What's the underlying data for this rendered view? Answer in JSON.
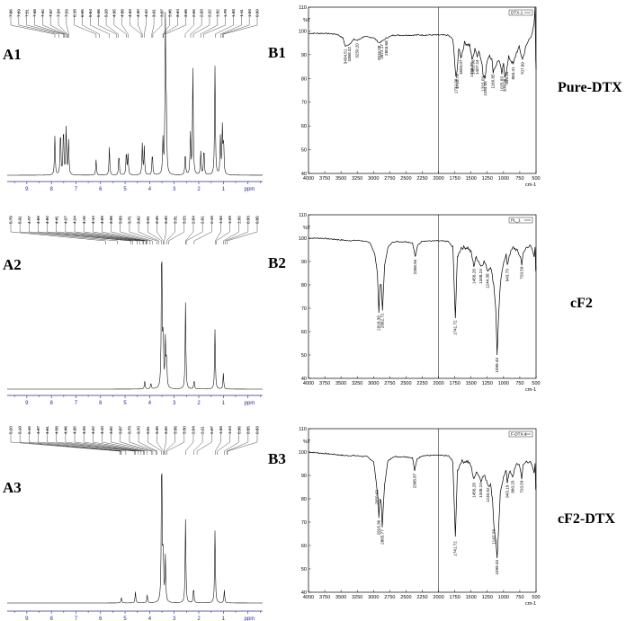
{
  "panels": {
    "A1": "A1",
    "A2": "A2",
    "A3": "A3",
    "B1": "B1",
    "B2": "B2",
    "B3": "B3"
  },
  "samples": {
    "B1": "Pure-DTX",
    "B2": "cF2",
    "B3": "cF2-DTX"
  },
  "colors": {
    "nmr_axis": "#2a2a9a",
    "spectrum": "#000000"
  },
  "chart_data": [
    {
      "type": "line",
      "id": "A1",
      "kind": "1H NMR spectrum",
      "xlabel": "ppm",
      "xlim": [
        9.8,
        -0.6
      ],
      "x_reversed": true,
      "x_ticks": [
        "9",
        "8",
        "7",
        "6",
        "5",
        "4",
        "3",
        "2",
        "1",
        "ppm"
      ],
      "shift_labels": [
        "7.86",
        "7.69",
        "7.51",
        "7.48",
        "7.42",
        "7.37",
        "7.34",
        "7.29",
        "6.18",
        "6.05",
        "5.64",
        "5.36",
        "5.28",
        "4.95",
        "4.88",
        "4.34",
        "4.30",
        "4.22",
        "3.91",
        "3.87",
        "3.46",
        "3.44",
        "3.36",
        "2.55",
        "2.33",
        "2.22",
        "1.92",
        "1.79",
        "1.33",
        "1.11",
        "1.04",
        "0.99"
      ],
      "peaks": [
        [
          7.86,
          0.25
        ],
        [
          7.63,
          0.3
        ],
        [
          7.51,
          0.32
        ],
        [
          7.4,
          0.3
        ],
        [
          7.3,
          0.22
        ],
        [
          6.18,
          0.1
        ],
        [
          5.64,
          0.18
        ],
        [
          5.25,
          0.14
        ],
        [
          4.95,
          0.16
        ],
        [
          4.88,
          0.13
        ],
        [
          4.3,
          0.2
        ],
        [
          4.22,
          0.18
        ],
        [
          3.89,
          0.15
        ],
        [
          3.46,
          0.22
        ],
        [
          3.36,
          1.0
        ],
        [
          3.32,
          0.35
        ],
        [
          2.55,
          0.15
        ],
        [
          2.34,
          0.26
        ],
        [
          2.24,
          0.68
        ],
        [
          1.92,
          0.15
        ],
        [
          1.79,
          0.18
        ],
        [
          1.34,
          0.7
        ],
        [
          1.12,
          0.24
        ],
        [
          1.04,
          0.3
        ],
        [
          0.99,
          0.22
        ]
      ]
    },
    {
      "type": "line",
      "id": "A2",
      "kind": "1H NMR spectrum",
      "xlabel": "ppm",
      "xlim": [
        9.8,
        -0.6
      ],
      "x_reversed": true,
      "x_ticks": [
        "9",
        "8",
        "7",
        "6",
        "5",
        "4",
        "3",
        "2",
        "1",
        "ppm"
      ],
      "shift_labels": [
        "5.79",
        "5.31",
        "4.77",
        "4.69",
        "4.50",
        "4.41",
        "4.27",
        "4.24",
        "4.15",
        "4.14",
        "4.09",
        "3.98",
        "3.89",
        "3.71",
        "3.62",
        "3.51",
        "3.45",
        "3.40",
        "3.31",
        "3.23",
        "2.54",
        "2.51",
        "2.19",
        "1.33",
        "1.29",
        "1.00",
        "0.93",
        "0.85"
      ],
      "peaks": [
        [
          4.2,
          0.05
        ],
        [
          3.95,
          0.04
        ],
        [
          3.51,
          1.0
        ],
        [
          3.45,
          0.35
        ],
        [
          3.36,
          0.3
        ],
        [
          3.31,
          0.2
        ],
        [
          2.54,
          0.55
        ],
        [
          2.19,
          0.06
        ],
        [
          1.34,
          0.38
        ],
        [
          1.0,
          0.1
        ]
      ]
    },
    {
      "type": "line",
      "id": "A3",
      "kind": "1H NMR spectrum",
      "xlabel": "ppm",
      "xlim": [
        9.8,
        -0.6
      ],
      "x_reversed": true,
      "x_ticks": [
        "9",
        "8",
        "7",
        "6",
        "5",
        "4",
        "3",
        "2",
        "1",
        "ppm"
      ],
      "shift_labels": [
        "5.20",
        "5.19",
        "5.15",
        "4.97",
        "4.61",
        "4.58",
        "4.46",
        "4.35",
        "4.25",
        "4.22",
        "4.10",
        "3.92",
        "3.87",
        "3.73",
        "3.70",
        "3.51",
        "3.45",
        "3.42",
        "3.36",
        "3.30",
        "2.54",
        "2.21",
        "2.07",
        "1.33",
        "1.24",
        "0.96",
        "0.85",
        "0.83"
      ],
      "peaks": [
        [
          5.15,
          0.04
        ],
        [
          4.58,
          0.07
        ],
        [
          4.1,
          0.05
        ],
        [
          3.51,
          1.0
        ],
        [
          3.45,
          0.32
        ],
        [
          3.36,
          0.28
        ],
        [
          2.54,
          0.52
        ],
        [
          2.21,
          0.1
        ],
        [
          1.34,
          0.45
        ],
        [
          0.96,
          0.08
        ]
      ]
    },
    {
      "type": "line",
      "id": "B1",
      "kind": "FTIR spectrum",
      "legend": "DTX-1",
      "ylabel": "%T",
      "xlabel": "cm-1",
      "xlim": [
        4000,
        500
      ],
      "ylim": [
        40,
        110
      ],
      "x_ticks": [
        4000,
        3750,
        3500,
        3250,
        3000,
        2750,
        2500,
        2250,
        2000,
        1750,
        1500,
        1250,
        1000,
        750,
        500
      ],
      "y_ticks": [
        40,
        50,
        60,
        70,
        80,
        90,
        100,
        110
      ],
      "peak_labels": [
        "3434.51",
        "3368.32",
        "3250.20",
        "2915.08",
        "2872.17",
        "2803.68",
        "1732.99",
        "1712.78",
        "1653.07",
        "1486.00",
        "1465.98",
        "1407.24",
        "1315.03",
        "1284.05",
        "1160.85",
        "1025.83",
        "979.98",
        "948.40",
        "850.41",
        "707.89"
      ],
      "points": [
        [
          4000,
          99
        ],
        [
          3750,
          99
        ],
        [
          3560,
          98.6
        ],
        [
          3470,
          97
        ],
        [
          3434,
          93.5
        ],
        [
          3368,
          94.5
        ],
        [
          3300,
          96.5
        ],
        [
          3250,
          96
        ],
        [
          3150,
          97.6
        ],
        [
          3000,
          97.2
        ],
        [
          2960,
          96.2
        ],
        [
          2915,
          95
        ],
        [
          2872,
          95.6
        ],
        [
          2803,
          97
        ],
        [
          2700,
          98.2
        ],
        [
          2500,
          98.2
        ],
        [
          2300,
          98.3
        ],
        [
          2100,
          98.3
        ],
        [
          1850,
          98.2
        ],
        [
          1780,
          96.5
        ],
        [
          1733,
          81
        ],
        [
          1712,
          83
        ],
        [
          1690,
          93
        ],
        [
          1653,
          89
        ],
        [
          1600,
          95
        ],
        [
          1520,
          94
        ],
        [
          1486,
          88
        ],
        [
          1466,
          89
        ],
        [
          1440,
          93
        ],
        [
          1407,
          89
        ],
        [
          1380,
          92
        ],
        [
          1330,
          86
        ],
        [
          1315,
          82
        ],
        [
          1284,
          80
        ],
        [
          1250,
          88
        ],
        [
          1215,
          90
        ],
        [
          1180,
          88
        ],
        [
          1161,
          83
        ],
        [
          1110,
          86
        ],
        [
          1070,
          88
        ],
        [
          1026,
          82
        ],
        [
          1000,
          86
        ],
        [
          980,
          81
        ],
        [
          948,
          84
        ],
        [
          920,
          89
        ],
        [
          850,
          86
        ],
        [
          800,
          91
        ],
        [
          760,
          93
        ],
        [
          708,
          88
        ],
        [
          660,
          93
        ],
        [
          600,
          97
        ],
        [
          560,
          99
        ],
        [
          530,
          103
        ],
        [
          515,
          110
        ],
        [
          505,
          88
        ],
        [
          500,
          84
        ]
      ]
    },
    {
      "type": "line",
      "id": "B2",
      "kind": "FTIR spectrum",
      "legend": "PL_1",
      "ylabel": "%T",
      "xlabel": "cm-1",
      "xlim": [
        4000,
        500
      ],
      "ylim": [
        40,
        110
      ],
      "x_ticks": [
        4000,
        3750,
        3500,
        3250,
        3000,
        2750,
        2500,
        2250,
        2000,
        1750,
        1500,
        1250,
        1000,
        750,
        500
      ],
      "y_ticks": [
        40,
        50,
        60,
        70,
        80,
        90,
        100,
        110
      ],
      "peak_labels": [
        "2918.38",
        "2862.72",
        "2358.94",
        "1741.72",
        "1456.28",
        "1348.24",
        "1244.38",
        "1099.43",
        "943.73",
        "720.59"
      ],
      "points": [
        [
          4000,
          100
        ],
        [
          3800,
          100
        ],
        [
          3600,
          99.5
        ],
        [
          3400,
          99
        ],
        [
          3200,
          99
        ],
        [
          3050,
          98
        ],
        [
          2980,
          93
        ],
        [
          2940,
          85
        ],
        [
          2918,
          68
        ],
        [
          2900,
          80
        ],
        [
          2880,
          80
        ],
        [
          2862,
          69
        ],
        [
          2830,
          88
        ],
        [
          2780,
          96
        ],
        [
          2700,
          98.5
        ],
        [
          2500,
          98.5
        ],
        [
          2400,
          98
        ],
        [
          2358,
          92
        ],
        [
          2320,
          97
        ],
        [
          2250,
          98.8
        ],
        [
          2000,
          98.8
        ],
        [
          1850,
          98.6
        ],
        [
          1780,
          96
        ],
        [
          1741,
          66
        ],
        [
          1710,
          92
        ],
        [
          1650,
          96
        ],
        [
          1550,
          96
        ],
        [
          1500,
          94
        ],
        [
          1470,
          90
        ],
        [
          1456,
          88
        ],
        [
          1420,
          92
        ],
        [
          1380,
          90
        ],
        [
          1348,
          88
        ],
        [
          1300,
          90
        ],
        [
          1280,
          89
        ],
        [
          1244,
          86
        ],
        [
          1200,
          88
        ],
        [
          1150,
          80
        ],
        [
          1120,
          70
        ],
        [
          1099,
          50
        ],
        [
          1080,
          64
        ],
        [
          1050,
          80
        ],
        [
          1000,
          90
        ],
        [
          960,
          93
        ],
        [
          943,
          88
        ],
        [
          910,
          93
        ],
        [
          850,
          96
        ],
        [
          800,
          95
        ],
        [
          740,
          92
        ],
        [
          720,
          89
        ],
        [
          700,
          93
        ],
        [
          650,
          96
        ],
        [
          600,
          97
        ],
        [
          560,
          95
        ],
        [
          530,
          92
        ],
        [
          515,
          96
        ],
        [
          505,
          86
        ],
        [
          500,
          88
        ]
      ]
    },
    {
      "type": "line",
      "id": "B3",
      "kind": "FTIR spectrum",
      "legend": "F-DTX-1",
      "ylabel": "%T",
      "xlabel": "cm-1",
      "xlim": [
        4000,
        500
      ],
      "ylim": [
        40,
        110
      ],
      "x_ticks": [
        4000,
        3750,
        3500,
        3250,
        3000,
        2750,
        2500,
        2250,
        2000,
        1750,
        1500,
        1250,
        1000,
        750,
        500
      ],
      "y_ticks": [
        40,
        50,
        60,
        70,
        80,
        90,
        100,
        110
      ],
      "peak_labels": [
        "2950.63",
        "2918.36",
        "2865.77",
        "2368.87",
        "1741.72",
        "1456.28",
        "1348.24",
        "1240.52",
        "1147.23",
        "1099.43",
        "943.19",
        "860.25",
        "720.59"
      ],
      "points": [
        [
          4000,
          100
        ],
        [
          3800,
          99.5
        ],
        [
          3600,
          99
        ],
        [
          3450,
          98.5
        ],
        [
          3300,
          98.5
        ],
        [
          3100,
          98
        ],
        [
          3000,
          96
        ],
        [
          2980,
          92
        ],
        [
          2950,
          85
        ],
        [
          2930,
          80
        ],
        [
          2918,
          72
        ],
        [
          2900,
          80
        ],
        [
          2880,
          78
        ],
        [
          2866,
          68
        ],
        [
          2830,
          86
        ],
        [
          2780,
          96
        ],
        [
          2700,
          98
        ],
        [
          2500,
          98
        ],
        [
          2400,
          97.5
        ],
        [
          2368,
          92
        ],
        [
          2330,
          97
        ],
        [
          2250,
          98.5
        ],
        [
          2000,
          98.6
        ],
        [
          1850,
          98.4
        ],
        [
          1780,
          96
        ],
        [
          1741,
          63
        ],
        [
          1710,
          92
        ],
        [
          1650,
          96
        ],
        [
          1550,
          96
        ],
        [
          1500,
          94
        ],
        [
          1470,
          90
        ],
        [
          1456,
          88
        ],
        [
          1420,
          92
        ],
        [
          1380,
          90
        ],
        [
          1348,
          88
        ],
        [
          1300,
          90
        ],
        [
          1260,
          88
        ],
        [
          1240,
          86
        ],
        [
          1200,
          86
        ],
        [
          1170,
          80
        ],
        [
          1147,
          68
        ],
        [
          1120,
          62
        ],
        [
          1099,
          55
        ],
        [
          1080,
          64
        ],
        [
          1050,
          82
        ],
        [
          1000,
          90
        ],
        [
          960,
          92
        ],
        [
          943,
          87
        ],
        [
          910,
          92
        ],
        [
          860,
          89
        ],
        [
          820,
          94
        ],
        [
          760,
          95
        ],
        [
          720,
          89
        ],
        [
          700,
          94
        ],
        [
          650,
          96
        ],
        [
          600,
          96
        ],
        [
          560,
          94
        ],
        [
          530,
          91
        ],
        [
          515,
          95
        ],
        [
          505,
          84
        ],
        [
          500,
          86
        ]
      ]
    }
  ]
}
